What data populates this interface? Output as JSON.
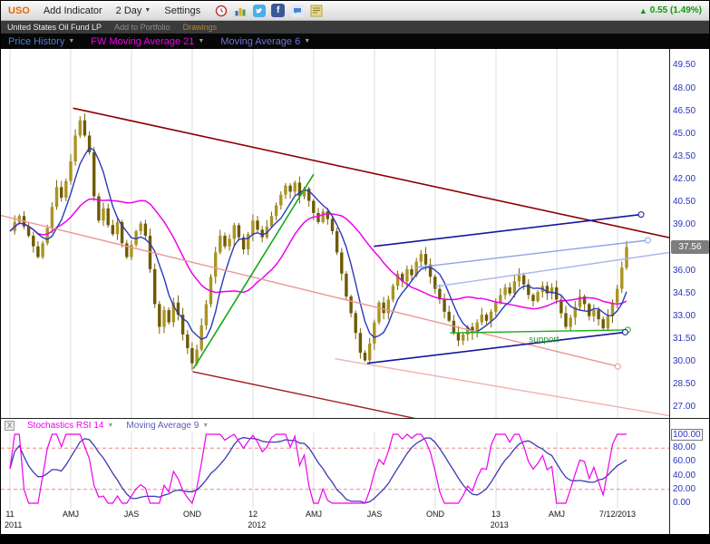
{
  "toolbar": {
    "symbol": "USO",
    "add_indicator": "Add Indicator",
    "period": "2 Day",
    "settings": "Settings",
    "change_text": "0.55 (1.49%)",
    "change_color": "#0b9b0b",
    "icons": [
      "alarm-icon",
      "bar-chart-icon",
      "twitter-icon",
      "facebook-icon",
      "chat-icon",
      "note-icon"
    ]
  },
  "infobar": {
    "name": "United States Oil Fund LP",
    "add_to_portfolio": "Add to Portfolio",
    "drawings": "Drawings"
  },
  "price_header": {
    "items": [
      {
        "label": "Price History",
        "color": "#4a7fd4"
      },
      {
        "label": "FW Moving Average 21",
        "color": "#ee00ee"
      },
      {
        "label": "Moving Average 6",
        "color": "#7070dd"
      }
    ]
  },
  "stoch_header": {
    "close_label": "X",
    "items": [
      {
        "label": "Stochastics RSI 14",
        "color": "#ee00ee"
      },
      {
        "label": "Moving Average 9",
        "color": "#5b5bb5"
      }
    ]
  },
  "chart_data": {
    "type": "candlestick",
    "symbol": "USO",
    "period": "2 Day",
    "ylim": [
      26.3,
      50.6
    ],
    "yticks": [
      49.5,
      48,
      46.5,
      45,
      43.5,
      42,
      40.5,
      39,
      36,
      34.5,
      33,
      31.5,
      30,
      28.5,
      27
    ],
    "last_price": 37.56,
    "last_price_label": "37.56",
    "closes": [
      38.6,
      39.2,
      39.6,
      38.9,
      38.3,
      37.6,
      36.9,
      37.8,
      38.8,
      40.2,
      41.5,
      40.8,
      41.9,
      43.2,
      44.9,
      45.9,
      44.9,
      43.8,
      40.9,
      39.3,
      40.1,
      39.0,
      38.4,
      39.2,
      37.8,
      36.9,
      37.7,
      38.6,
      39.1,
      38.3,
      36.1,
      33.8,
      32.3,
      33.4,
      32.6,
      33.9,
      33.1,
      31.8,
      30.9,
      29.9,
      30.8,
      32.4,
      33.8,
      35.6,
      37.2,
      38.3,
      37.6,
      38.1,
      39.0,
      38.2,
      37.4,
      38.4,
      39.3,
      38.7,
      38.2,
      38.9,
      39.6,
      40.3,
      41.0,
      41.6,
      41.2,
      41.8,
      40.9,
      41.4,
      40.6,
      39.8,
      39.2,
      39.9,
      39.4,
      38.6,
      37.2,
      35.8,
      34.3,
      33.2,
      31.9,
      30.6,
      30.1,
      31.2,
      32.6,
      33.9,
      33.2,
      34.1,
      35.0,
      35.8,
      35.3,
      36.1,
      35.7,
      36.6,
      37.1,
      36.4,
      35.6,
      34.8,
      34.1,
      33.3,
      32.7,
      31.9,
      31.4,
      31.8,
      32.3,
      31.9,
      32.6,
      33.1,
      32.7,
      33.3,
      33.9,
      34.4,
      34.9,
      34.5,
      35.3,
      35.7,
      35.1,
      34.4,
      34.0,
      34.6,
      35.0,
      34.5,
      34.9,
      34.1,
      33.2,
      32.3,
      32.9,
      33.6,
      34.3,
      33.8,
      33.0,
      33.4,
      32.8,
      32.2,
      33.0,
      33.9,
      34.8,
      36.2,
      37.56
    ],
    "series": [
      {
        "name": "Price History",
        "type": "candlestick",
        "up_color": "#ab9420",
        "down_color": "#6e5a00",
        "wick_color": "#77650a"
      },
      {
        "name": "FW Moving Average 21",
        "type": "line",
        "color": "#ee00ee"
      },
      {
        "name": "Moving Average 6",
        "type": "line",
        "color": "#2b3ab8"
      }
    ],
    "x_axis": {
      "labels": [
        {
          "t": 0.0136,
          "text": "11"
        },
        {
          "t": 0.1045,
          "text": "AMJ"
        },
        {
          "t": 0.1954,
          "text": "JAS"
        },
        {
          "t": 0.2863,
          "text": "OND"
        },
        {
          "t": 0.3772,
          "text": "12"
        },
        {
          "t": 0.4681,
          "text": "AMJ"
        },
        {
          "t": 0.559,
          "text": "JAS"
        },
        {
          "t": 0.6499,
          "text": "OND"
        },
        {
          "t": 0.7408,
          "text": "13"
        },
        {
          "t": 0.8317,
          "text": "AMJ"
        },
        {
          "t": 0.9226,
          "text": "7/12/2013"
        }
      ],
      "years": [
        {
          "t": 0.383,
          "text": "2012"
        },
        {
          "t": 0.746,
          "text": "2013"
        }
      ],
      "corner": "2011"
    },
    "indicator": {
      "name": "Stochastics RSI 14",
      "ma_name": "Moving Average 9",
      "ylim": [
        0,
        100
      ],
      "levels": [
        20,
        80
      ],
      "yticks": [
        100,
        80,
        60,
        40,
        20,
        0
      ],
      "current": 100,
      "color": "#ee00ee",
      "ma_color": "#3b3bb0",
      "level_color": "#ee8888"
    },
    "drawings": [
      {
        "name": "channel-top-line",
        "color": "#8b0000",
        "w": 1.6,
        "x1": 0.108,
        "p1": 46.7,
        "x2": 1.06,
        "p2": 37.6,
        "handle": false
      },
      {
        "name": "channel-mid-pink-line",
        "color": "#ee9595",
        "w": 1.4,
        "x1": -0.02,
        "p1": 39.85,
        "x2": 0.923,
        "p2": 29.7,
        "handle": true
      },
      {
        "name": "channel-bottom-red-line",
        "color": "#a02020",
        "w": 1.4,
        "x1": 0.287,
        "p1": 29.35,
        "x2": 0.8,
        "p2": 24.6,
        "handle": false
      },
      {
        "name": "channel-lower-pink-line",
        "color": "#f2aeae",
        "w": 1.4,
        "x1": 0.5,
        "p1": 30.2,
        "x2": 1.06,
        "p2": 26.0,
        "handle": false
      },
      {
        "name": "rally-trendline-green",
        "color": "#19a819",
        "w": 1.6,
        "x1": 0.288,
        "p1": 29.55,
        "x2": 0.468,
        "p2": 42.35,
        "handle": false
      },
      {
        "name": "support-line-green",
        "color": "#22ad22",
        "w": 1.4,
        "x1": 0.672,
        "p1": 31.9,
        "x2": 0.938,
        "p2": 32.1,
        "handle": true
      },
      {
        "name": "resistance-trendline-blue-upper",
        "color": "#16169a",
        "w": 1.6,
        "x1": 0.558,
        "p1": 37.6,
        "x2": 0.958,
        "p2": 39.7,
        "handle": true
      },
      {
        "name": "trendline-blue-lower",
        "color": "#16169a",
        "w": 1.6,
        "x1": 0.548,
        "p1": 29.9,
        "x2": 0.934,
        "p2": 31.95,
        "handle": true
      },
      {
        "name": "fan-line-lightblue-1",
        "color": "#8fa2e8",
        "w": 1.4,
        "x1": 0.62,
        "p1": 36.2,
        "x2": 0.968,
        "p2": 38.0,
        "handle": true
      },
      {
        "name": "fan-line-lightblue-2",
        "color": "#aab6ee",
        "w": 1.4,
        "x1": 0.65,
        "p1": 34.95,
        "x2": 1.04,
        "p2": 37.45,
        "handle": false
      }
    ],
    "annotations": [
      {
        "text": "support",
        "t": 0.79,
        "p": 31.3,
        "color": "#1fa11f"
      }
    ]
  }
}
